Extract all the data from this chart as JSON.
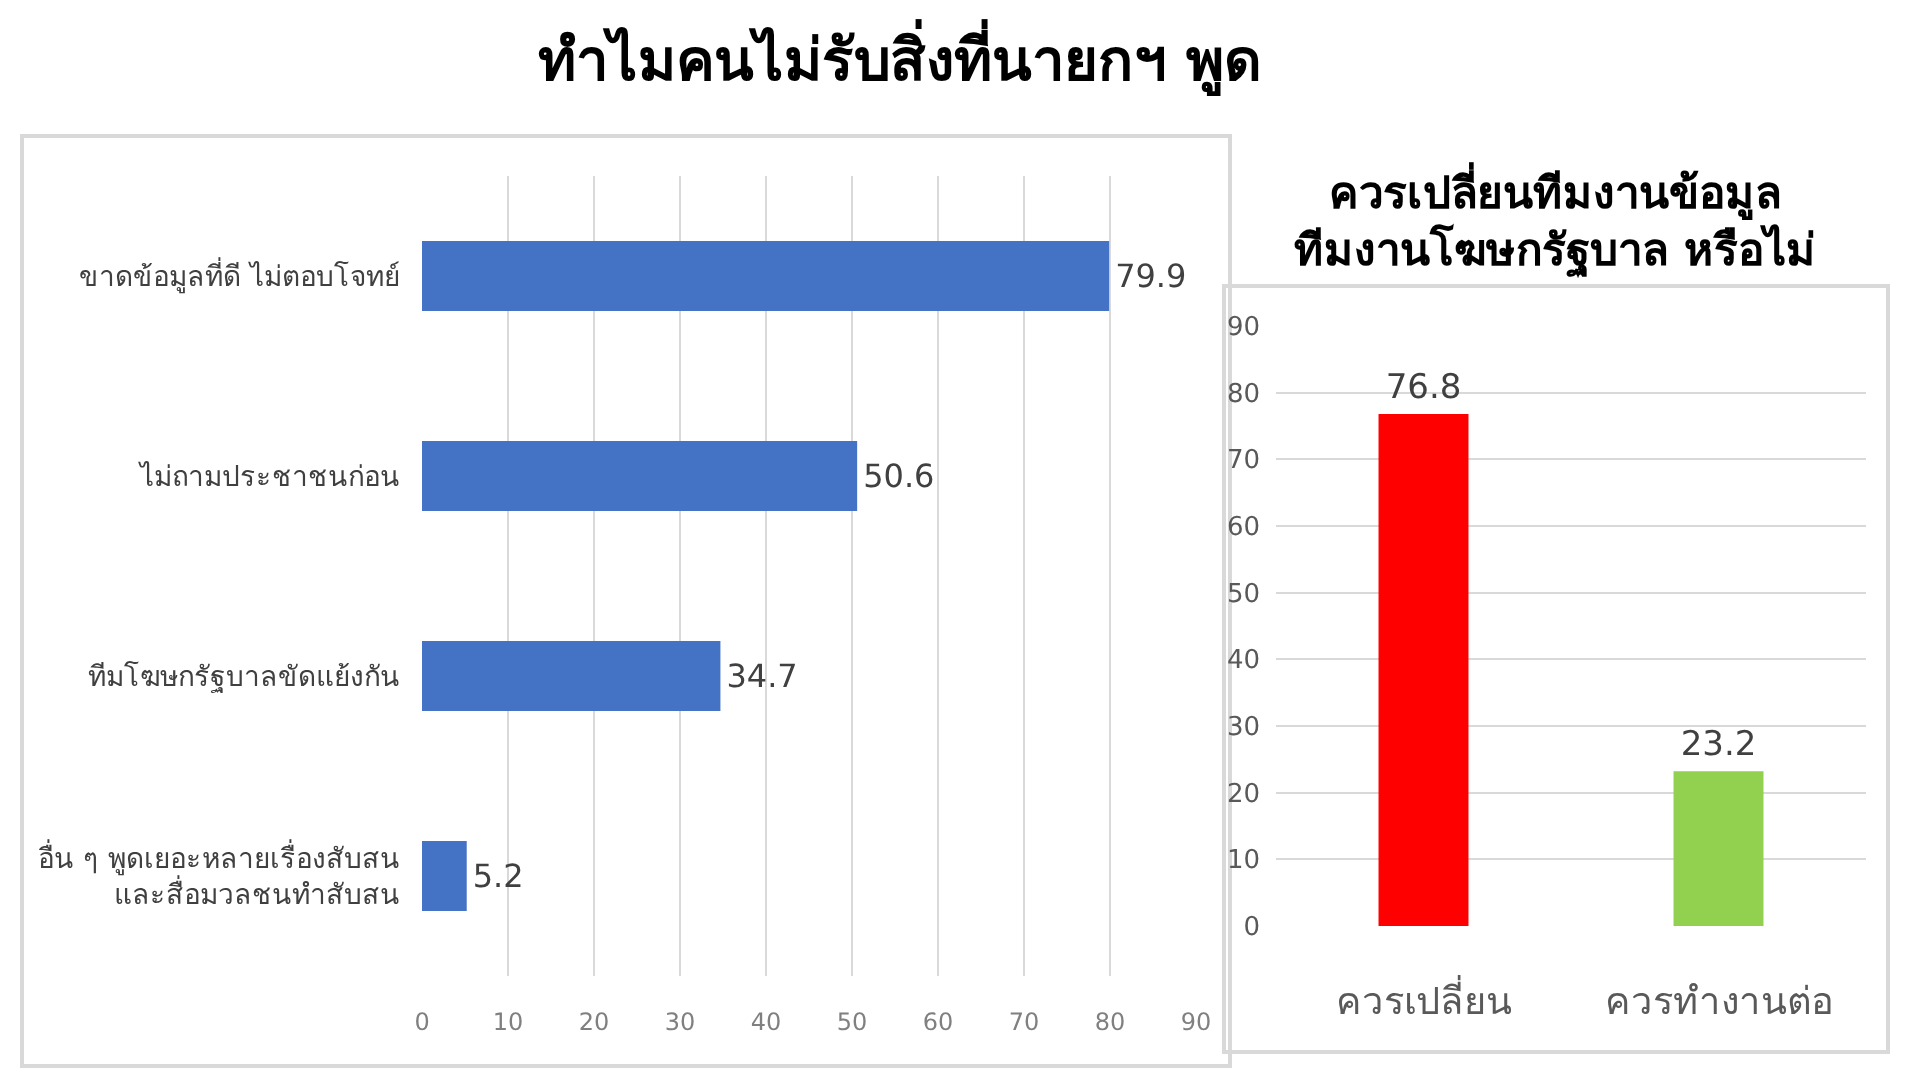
{
  "chart_data": [
    {
      "type": "bar",
      "orientation": "horizontal",
      "title": "ทำไมคนไม่รับสิ่งที่นายกฯ พูด",
      "categories": [
        "ขาดข้อมูลที่ดี ไม่ตอบโจทย์",
        "ไม่ถามประชาชนก่อน",
        "ทีมโฆษกรัฐบาลขัดแย้งกัน",
        "อื่น ๆ พูดเยอะหลายเรื่องสับสน\nและสื่อมวลชนทำสับสน"
      ],
      "values": [
        79.9,
        50.6,
        34.7,
        5.2
      ],
      "color": "#4472c4",
      "xlim": [
        0,
        90
      ],
      "xticks": [
        0,
        10,
        20,
        30,
        40,
        50,
        60,
        70,
        80,
        90
      ],
      "grid": "x",
      "data_labels": true
    },
    {
      "type": "bar",
      "title": "ควรเปลี่ยนทีมงานข้อมูล\nทีมงานโฆษกรัฐบาล หรือไม่",
      "categories": [
        "ควรเปลี่ยน",
        "ควรทำงานต่อ"
      ],
      "values": [
        76.8,
        23.2
      ],
      "colors": [
        "#ff0000",
        "#92d050"
      ],
      "ylim": [
        0,
        90
      ],
      "yticks": [
        0,
        10,
        20,
        30,
        40,
        50,
        60,
        70,
        80,
        90
      ],
      "grid": "y",
      "data_labels": true
    }
  ]
}
